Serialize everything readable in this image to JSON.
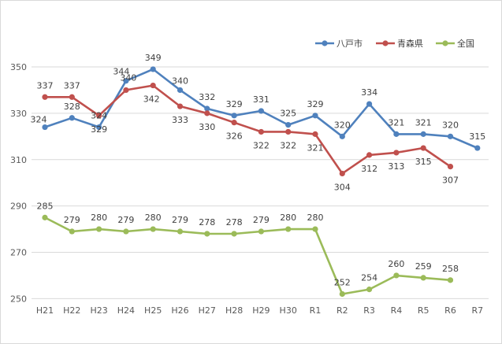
{
  "chart_data": {
    "type": "line",
    "categories": [
      "H21",
      "H22",
      "H23",
      "H24",
      "H25",
      "H26",
      "H27",
      "H28",
      "H29",
      "H30",
      "R1",
      "R2",
      "R3",
      "R4",
      "R5",
      "R6",
      "R7"
    ],
    "ylim": [
      250,
      350
    ],
    "yticks": [
      250,
      270,
      290,
      310,
      330,
      350
    ],
    "grid": true,
    "legend_position": "top-right",
    "series": [
      {
        "name": "八戸市",
        "color": "#4f81bd",
        "values": [
          324,
          328,
          324,
          344,
          349,
          340,
          332,
          329,
          331,
          325,
          329,
          320,
          334,
          321,
          321,
          320,
          315
        ]
      },
      {
        "name": "青森県",
        "color": "#c0504d",
        "values": [
          337,
          337,
          329,
          340,
          342,
          333,
          330,
          326,
          322,
          322,
          321,
          304,
          312,
          313,
          315,
          307,
          null
        ]
      },
      {
        "name": "全国",
        "color": "#9bbb59",
        "values": [
          285,
          279,
          280,
          279,
          280,
          279,
          278,
          278,
          279,
          280,
          280,
          252,
          254,
          260,
          259,
          258,
          null
        ]
      }
    ]
  }
}
